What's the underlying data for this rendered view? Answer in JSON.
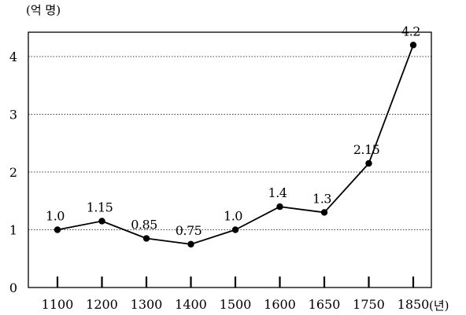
{
  "chart_data": {
    "type": "line",
    "y_unit_label": "(억 명)",
    "x_unit_label": "(년)",
    "categories": [
      "1100",
      "1200",
      "1300",
      "1400",
      "1500",
      "1600",
      "1650",
      "1750",
      "1850"
    ],
    "values": [
      1.0,
      1.15,
      0.85,
      0.75,
      1.0,
      1.4,
      1.3,
      2.15,
      4.2
    ],
    "data_labels": [
      "1.0",
      "1.15",
      "0.85",
      "0.75",
      "1.0",
      "1.4",
      "1.3",
      "2.15",
      "4.2"
    ],
    "y_ticks": [
      "0",
      "1",
      "2",
      "3",
      "4"
    ],
    "ylim": [
      0,
      4.2
    ],
    "grid": "dotted horizontal",
    "colors": {
      "line": "#000000",
      "point": "#000000",
      "grid": "#000000"
    }
  }
}
